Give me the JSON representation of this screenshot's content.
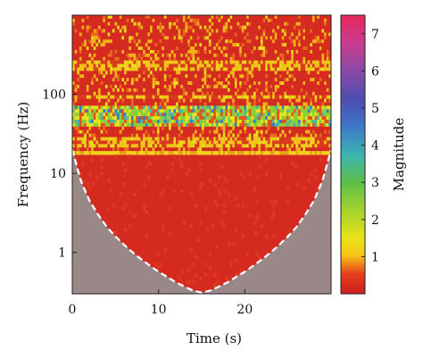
{
  "chart_data": {
    "type": "heatmap",
    "subtype": "wavelet scalogram with cone of influence",
    "xlabel": "Time (s)",
    "ylabel": "Frequency (Hz)",
    "colorbar_label": "Magnitude",
    "x_ticks": [
      {
        "value": 0,
        "label": "0"
      },
      {
        "value": 10,
        "label": "10"
      },
      {
        "value": 20,
        "label": "20"
      }
    ],
    "y_ticks": [
      {
        "value": 1,
        "label": "1"
      },
      {
        "value": 10,
        "label": "10"
      },
      {
        "value": 100,
        "label": "100"
      }
    ],
    "colorbar_ticks": [
      {
        "value": 1,
        "label": "1"
      },
      {
        "value": 2,
        "label": "2"
      },
      {
        "value": 3,
        "label": "3"
      },
      {
        "value": 4,
        "label": "4"
      },
      {
        "value": 5,
        "label": "5"
      },
      {
        "value": 6,
        "label": "6"
      },
      {
        "value": 7,
        "label": "7"
      }
    ],
    "xlim": [
      0,
      30
    ],
    "ylim": [
      0.3,
      1000
    ],
    "y_scale": "log",
    "clim": [
      0,
      7.5
    ],
    "cone_of_influence": {
      "t": [
        0,
        1,
        2,
        3,
        4,
        5,
        6,
        7,
        8,
        9,
        10,
        11,
        12,
        13,
        14,
        15,
        16,
        17,
        18,
        19,
        20,
        21,
        22,
        23,
        24,
        25,
        26,
        27,
        28,
        29,
        30
      ],
      "f": [
        20,
        8,
        4.5,
        3,
        2.1,
        1.6,
        1.25,
        1.0,
        0.82,
        0.68,
        0.57,
        0.49,
        0.42,
        0.37,
        0.33,
        0.31,
        0.33,
        0.37,
        0.42,
        0.49,
        0.57,
        0.68,
        0.82,
        1.0,
        1.25,
        1.6,
        2.1,
        3,
        4.5,
        8,
        20
      ],
      "style": "white dashed",
      "outside_shading": "#9a8787"
    },
    "bands": [
      {
        "f_range": [
          22,
          28
        ],
        "level": "yellow-red mix"
      },
      {
        "f_range": [
          40,
          70
        ],
        "level": "green-yellow, magnitude approx 2-4"
      },
      {
        "f_range": [
          85,
          100
        ],
        "level": "yellow"
      },
      {
        "f_range": [
          200,
          260
        ],
        "level": "yellow"
      }
    ],
    "grid": false
  }
}
